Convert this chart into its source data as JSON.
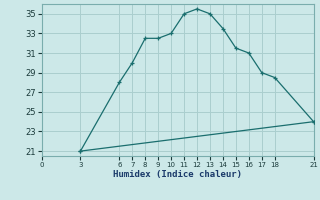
{
  "xlabel": "Humidex (Indice chaleur)",
  "bg_color": "#cce8e8",
  "grid_color": "#aacece",
  "line_color": "#1a6e6e",
  "line1_x": [
    3,
    6,
    7,
    8,
    9,
    10,
    11,
    12,
    13,
    14,
    15,
    16,
    17,
    18,
    21
  ],
  "line1_y": [
    21,
    28,
    30,
    32.5,
    32.5,
    33,
    35,
    35.5,
    35,
    33.5,
    31.5,
    31,
    29,
    28.5,
    24
  ],
  "line2_x": [
    3,
    21
  ],
  "line2_y": [
    21,
    24
  ],
  "xlim": [
    0,
    21
  ],
  "ylim": [
    20.5,
    36
  ],
  "xticks": [
    0,
    3,
    6,
    7,
    8,
    9,
    10,
    11,
    12,
    13,
    14,
    15,
    16,
    17,
    18,
    21
  ],
  "yticks": [
    21,
    23,
    25,
    27,
    29,
    31,
    33,
    35
  ],
  "marker": "+"
}
